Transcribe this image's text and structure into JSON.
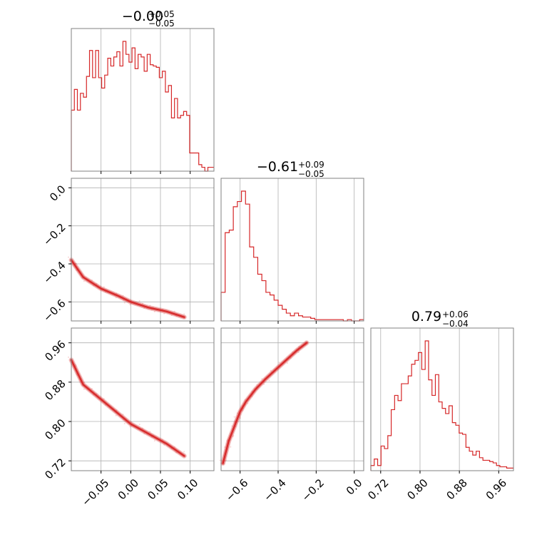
{
  "chart_data": {
    "type": "corner",
    "color": "#d62728",
    "grid": true,
    "parameters": [
      {
        "range": [
          -0.1,
          0.14
        ],
        "ticks": [
          -0.05,
          0.0,
          0.05,
          0.1
        ],
        "tick_labels": [
          "−0.05",
          "0.00",
          "0.05",
          "0.10"
        ],
        "title_main": "−0.00",
        "title_plus": "+0.05",
        "title_minus": "−0.05",
        "histogram": [
          0.47,
          0.63,
          0.47,
          0.6,
          0.57,
          0.73,
          0.93,
          0.72,
          0.93,
          0.72,
          0.64,
          0.74,
          0.87,
          0.81,
          0.88,
          0.92,
          0.81,
          1.0,
          0.9,
          0.84,
          0.95,
          0.79,
          0.9,
          0.88,
          0.77,
          0.9,
          0.82,
          0.81,
          0.8,
          0.72,
          0.77,
          0.61,
          0.66,
          0.41,
          0.56,
          0.41,
          0.43,
          0.46,
          0.43,
          0.14,
          0.14,
          0.14,
          0.05,
          0.03,
          0.0,
          0.03,
          0.03
        ]
      },
      {
        "range": [
          -0.7,
          0.05
        ],
        "ticks": [
          -0.6,
          -0.4,
          -0.2,
          0.0
        ],
        "tick_labels": [
          "−0.6",
          "−0.4",
          "−0.2",
          "0.0"
        ],
        "title_main": "−0.61",
        "title_plus": "+0.09",
        "title_minus": "−0.05",
        "histogram": [
          0.22,
          0.68,
          0.7,
          0.88,
          0.92,
          1.0,
          0.9,
          0.57,
          0.49,
          0.36,
          0.31,
          0.22,
          0.2,
          0.16,
          0.12,
          0.09,
          0.06,
          0.04,
          0.06,
          0.04,
          0.03,
          0.03,
          0.02,
          0.01,
          0.01,
          0.01,
          0.01,
          0.01,
          0.01,
          0.01,
          0.0,
          0.01,
          0.0,
          0.0,
          0.01
        ]
      },
      {
        "range": [
          0.7,
          0.99
        ],
        "ticks": [
          0.72,
          0.8,
          0.88,
          0.96
        ],
        "tick_labels": [
          "0.72",
          "0.80",
          "0.88",
          "0.96"
        ],
        "title_main": "0.79",
        "title_plus": "+0.06",
        "title_minus": "−0.04",
        "histogram": [
          0.04,
          0.09,
          0.04,
          0.19,
          0.17,
          0.27,
          0.47,
          0.58,
          0.54,
          0.67,
          0.67,
          0.73,
          0.82,
          0.85,
          0.91,
          0.78,
          1.0,
          0.7,
          0.58,
          0.74,
          0.53,
          0.48,
          0.44,
          0.5,
          0.37,
          0.35,
          0.29,
          0.28,
          0.18,
          0.15,
          0.12,
          0.15,
          0.1,
          0.08,
          0.08,
          0.07,
          0.06,
          0.04,
          0.03,
          0.03,
          0.02,
          0.02
        ]
      }
    ],
    "contours": [
      {
        "row": 1,
        "col": 0,
        "x": [
          -0.1,
          -0.08,
          -0.05,
          -0.02,
          0.0,
          0.03,
          0.06,
          0.09
        ],
        "y": [
          -0.38,
          -0.47,
          -0.53,
          -0.57,
          -0.6,
          -0.63,
          -0.65,
          -0.68
        ]
      },
      {
        "row": 2,
        "col": 0,
        "x": [
          -0.1,
          -0.08,
          -0.05,
          -0.02,
          0.0,
          0.03,
          0.06,
          0.09
        ],
        "y": [
          0.925,
          0.875,
          0.845,
          0.815,
          0.795,
          0.775,
          0.755,
          0.73
        ]
      },
      {
        "row": 2,
        "col": 1,
        "x": [
          -0.69,
          -0.66,
          -0.63,
          -0.6,
          -0.57,
          -0.52,
          -0.47,
          -0.4,
          -0.3,
          -0.25
        ],
        "y": [
          0.715,
          0.76,
          0.79,
          0.82,
          0.84,
          0.865,
          0.885,
          0.91,
          0.945,
          0.96
        ]
      }
    ]
  }
}
